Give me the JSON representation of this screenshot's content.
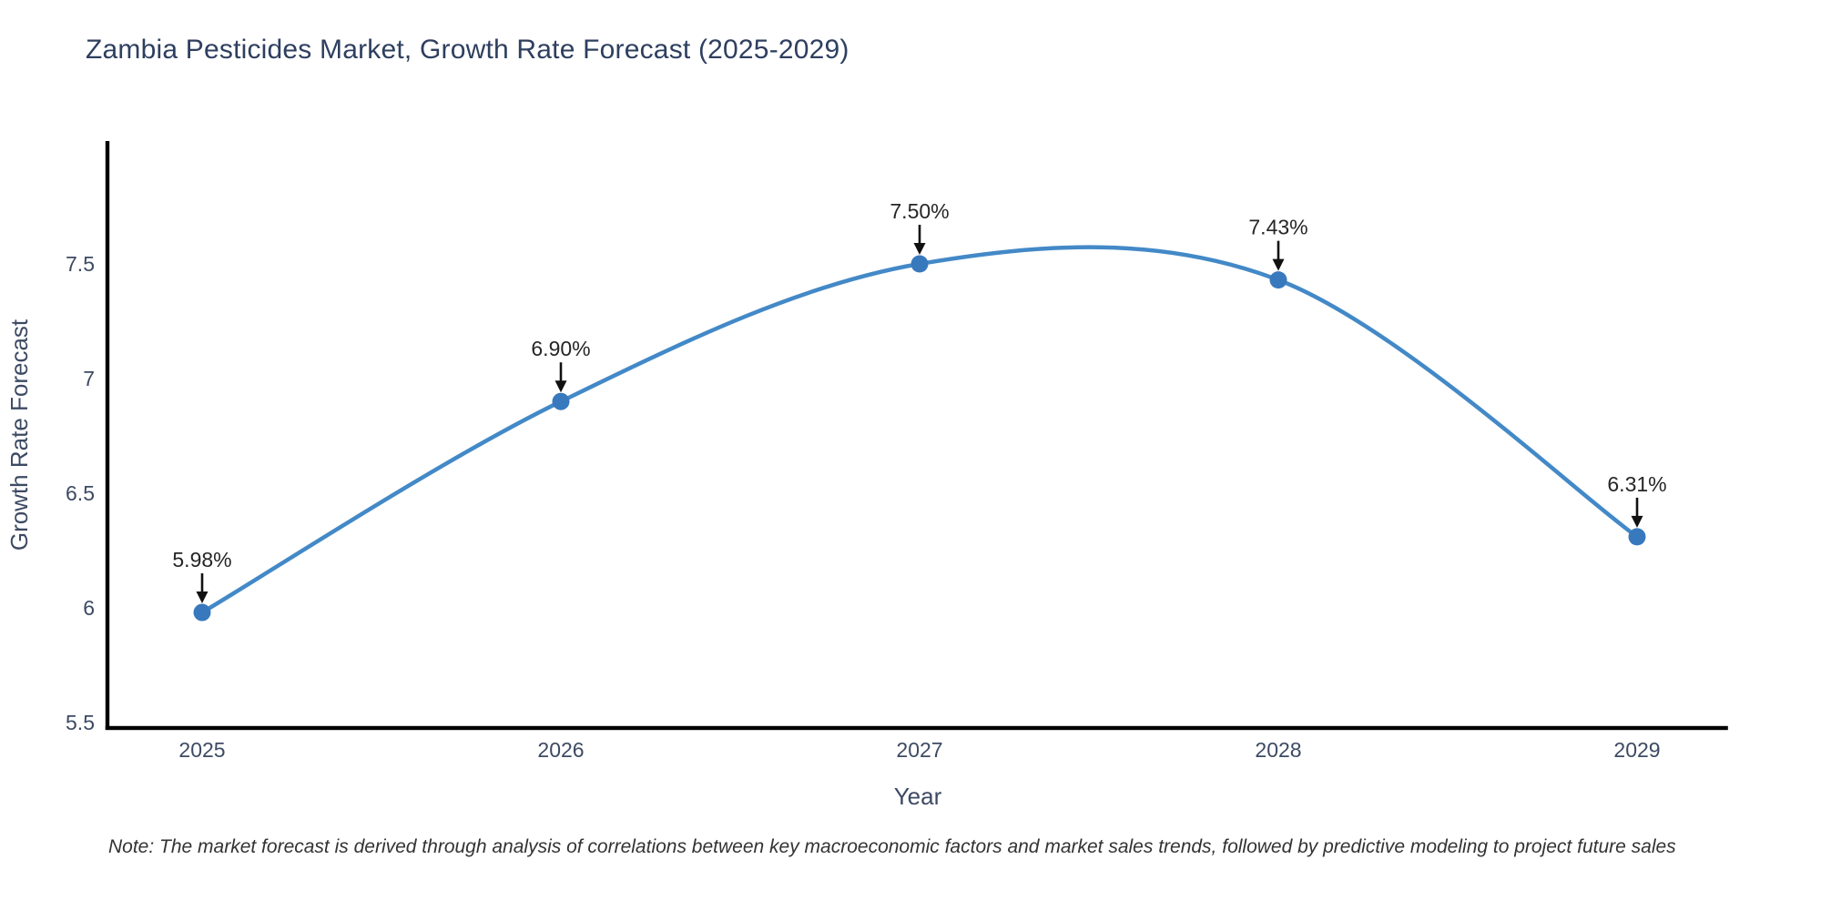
{
  "title": "Zambia Pesticides Market, Growth Rate Forecast (2025-2029)",
  "note": "Note: The market forecast is derived through analysis of correlations between key macroeconomic factors and market sales trends, followed by predictive modeling to project future sales",
  "chart_data": {
    "type": "line",
    "title": "Zambia Pesticides Market, Growth Rate Forecast (2025-2029)",
    "xlabel": "Year",
    "ylabel": "Growth Rate Forecast",
    "categories": [
      "2025",
      "2026",
      "2027",
      "2028",
      "2029"
    ],
    "values": [
      5.98,
      6.9,
      7.5,
      7.43,
      6.31
    ],
    "labels": [
      "5.98%",
      "6.90%",
      "7.50%",
      "7.43%",
      "6.31%"
    ],
    "yticks": [
      "5.5",
      "6",
      "6.5",
      "7",
      "7.5"
    ],
    "ylim": [
      5.45,
      8.05
    ],
    "grid": false,
    "legend": "none",
    "line_smooth": true,
    "annotation_style": "label-with-down-arrow",
    "colors": {
      "line": "#4389c7",
      "marker": "#3879bd",
      "axis": "#000000",
      "arrow": "#111111",
      "title_text": "#2e3f5f",
      "tick_text": "#3d4a63",
      "annotation_text": "#262626",
      "note_text": "#333333"
    }
  }
}
